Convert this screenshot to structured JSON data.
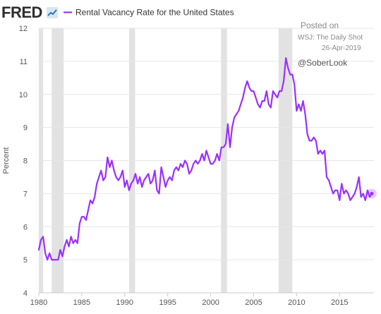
{
  "header": {
    "logo_text": "FRED",
    "legend_label": "Rental Vacancy Rate for the United States"
  },
  "annotation": {
    "posted_on": "Posted on",
    "source": "WSJ: The Daily Shot",
    "date": "26-Apr-2019",
    "handle": "@SoberLook"
  },
  "colors": {
    "series": "#9b30ff",
    "recession": "#e2e2e2",
    "grid": "#e6e6e6",
    "text": "#555555",
    "logo": "#2d2d2d"
  },
  "chart_data": {
    "type": "line",
    "title": "Rental Vacancy Rate for the United States",
    "ylabel": "Percent",
    "xlabel": "",
    "xlim": [
      1980.0,
      2019.0
    ],
    "ylim": [
      4,
      12
    ],
    "grid": true,
    "legend": "top-left",
    "yticks": [
      "4",
      "5",
      "6",
      "7",
      "8",
      "9",
      "10",
      "11",
      "12"
    ],
    "xticks": [
      "1980",
      "1985",
      "1990",
      "1995",
      "2000",
      "2005",
      "2010",
      "2015"
    ],
    "recessions": [
      [
        1980.0,
        1980.5
      ],
      [
        1981.5,
        1982.9
      ],
      [
        1990.5,
        1991.2
      ],
      [
        2001.2,
        2001.9
      ],
      [
        2007.9,
        2009.5
      ]
    ],
    "series": [
      {
        "name": "Rental Vacancy Rate for the United States",
        "x": [
          1980.0,
          1980.25,
          1980.5,
          1980.75,
          1981.0,
          1981.25,
          1981.5,
          1981.75,
          1982.0,
          1982.25,
          1982.5,
          1982.75,
          1983.0,
          1983.25,
          1983.5,
          1983.75,
          1984.0,
          1984.25,
          1984.5,
          1984.75,
          1985.0,
          1985.25,
          1985.5,
          1985.75,
          1986.0,
          1986.25,
          1986.5,
          1986.75,
          1987.0,
          1987.25,
          1987.5,
          1987.75,
          1988.0,
          1988.25,
          1988.5,
          1988.75,
          1989.0,
          1989.25,
          1989.5,
          1989.75,
          1990.0,
          1990.25,
          1990.5,
          1990.75,
          1991.0,
          1991.25,
          1991.5,
          1991.75,
          1992.0,
          1992.25,
          1992.5,
          1992.75,
          1993.0,
          1993.25,
          1993.5,
          1993.75,
          1994.0,
          1994.25,
          1994.5,
          1994.75,
          1995.0,
          1995.25,
          1995.5,
          1995.75,
          1996.0,
          1996.25,
          1996.5,
          1996.75,
          1997.0,
          1997.25,
          1997.5,
          1997.75,
          1998.0,
          1998.25,
          1998.5,
          1998.75,
          1999.0,
          1999.25,
          1999.5,
          1999.75,
          2000.0,
          2000.25,
          2000.5,
          2000.75,
          2001.0,
          2001.25,
          2001.5,
          2001.75,
          2002.0,
          2002.25,
          2002.5,
          2002.75,
          2003.0,
          2003.25,
          2003.5,
          2003.75,
          2004.0,
          2004.25,
          2004.5,
          2004.75,
          2005.0,
          2005.25,
          2005.5,
          2005.75,
          2006.0,
          2006.25,
          2006.5,
          2006.75,
          2007.0,
          2007.25,
          2007.5,
          2007.75,
          2008.0,
          2008.25,
          2008.5,
          2008.75,
          2009.0,
          2009.25,
          2009.5,
          2009.75,
          2010.0,
          2010.25,
          2010.5,
          2010.75,
          2011.0,
          2011.25,
          2011.5,
          2011.75,
          2012.0,
          2012.25,
          2012.5,
          2012.75,
          2013.0,
          2013.25,
          2013.5,
          2013.75,
          2014.0,
          2014.25,
          2014.5,
          2014.75,
          2015.0,
          2015.25,
          2015.5,
          2015.75,
          2016.0,
          2016.25,
          2016.5,
          2016.75,
          2017.0,
          2017.25,
          2017.5,
          2017.75,
          2018.0,
          2018.25,
          2018.5,
          2018.75
        ],
        "values": [
          5.3,
          5.6,
          5.7,
          5.2,
          5.0,
          5.2,
          5.0,
          5.0,
          5.0,
          5.0,
          5.3,
          5.1,
          5.4,
          5.6,
          5.4,
          5.7,
          5.5,
          5.6,
          5.5,
          6.1,
          6.3,
          6.3,
          6.2,
          6.5,
          6.8,
          6.7,
          6.9,
          7.3,
          7.5,
          7.7,
          7.4,
          7.5,
          8.1,
          7.8,
          8.0,
          7.7,
          7.5,
          7.4,
          7.5,
          7.7,
          7.2,
          7.4,
          7.1,
          7.3,
          7.4,
          7.6,
          7.3,
          7.5,
          7.2,
          7.4,
          7.5,
          7.6,
          7.3,
          7.4,
          7.7,
          7.1,
          7.0,
          7.8,
          7.5,
          7.2,
          7.4,
          7.5,
          7.4,
          7.7,
          7.8,
          7.7,
          7.9,
          7.8,
          8.0,
          7.9,
          7.6,
          7.7,
          7.9,
          8.0,
          7.9,
          8.0,
          8.2,
          8.0,
          8.3,
          8.1,
          7.9,
          7.9,
          8.0,
          8.2,
          8.0,
          8.4,
          8.4,
          8.5,
          9.1,
          8.4,
          9.0,
          9.3,
          9.4,
          9.5,
          9.7,
          9.9,
          10.2,
          10.4,
          10.2,
          10.1,
          10.1,
          9.9,
          9.7,
          9.6,
          9.8,
          9.8,
          10.1,
          9.7,
          9.6,
          10.1,
          10.0,
          9.9,
          10.1,
          10.1,
          10.4,
          11.1,
          10.8,
          10.6,
          10.6,
          10.3,
          9.5,
          9.7,
          9.5,
          9.8,
          9.4,
          8.8,
          8.6,
          8.6,
          8.7,
          8.6,
          8.2,
          8.3,
          8.2,
          8.3,
          7.5,
          7.4,
          7.2,
          7.0,
          7.1,
          7.1,
          6.8,
          7.3,
          7.0,
          7.1,
          7.0,
          6.8,
          6.9,
          7.0,
          7.2,
          7.5,
          6.9,
          7.0,
          6.8,
          7.1,
          6.9,
          7.0
        ]
      }
    ]
  }
}
